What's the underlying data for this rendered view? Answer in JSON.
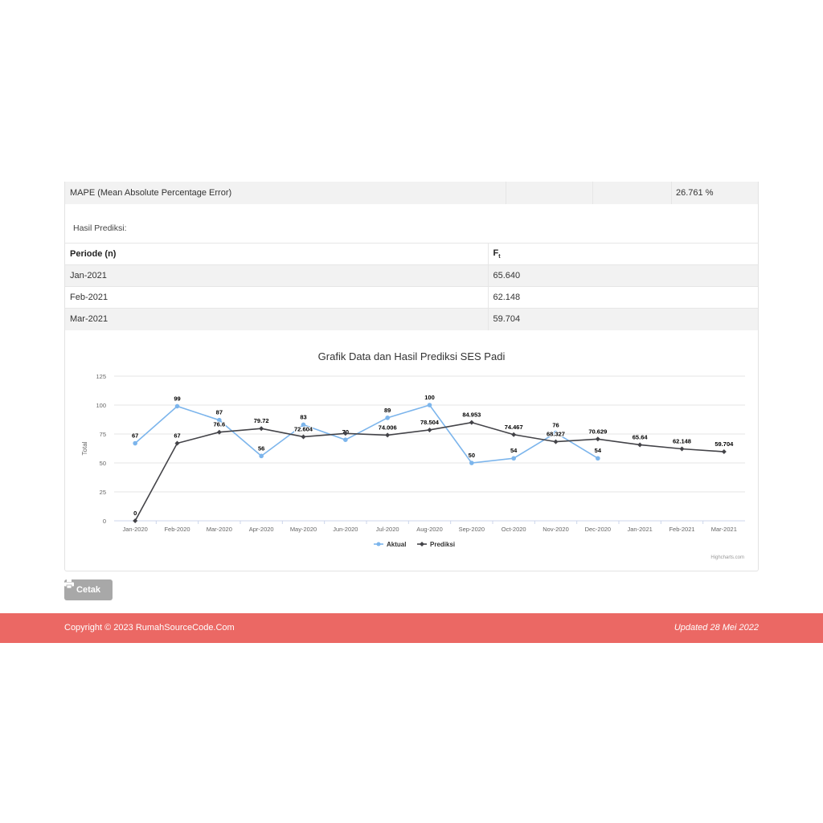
{
  "mape": {
    "label": "MAPE (Mean Absolute Percentage Error)",
    "value": "26.761 %"
  },
  "hasil_label": "Hasil Prediksi:",
  "table": {
    "headers": [
      "Periode (n)",
      "F",
      "t"
    ],
    "rows": [
      {
        "periode": "Jan-2021",
        "ft": "65.640"
      },
      {
        "periode": "Feb-2021",
        "ft": "62.148"
      },
      {
        "periode": "Mar-2021",
        "ft": "59.704"
      }
    ]
  },
  "chart_data": {
    "type": "line",
    "title": "Grafik Data dan Hasil Prediksi SES Padi",
    "ylabel": "Total",
    "xlabel": "",
    "ylim": [
      0,
      125
    ],
    "yticks": [
      0,
      25,
      50,
      75,
      100,
      125
    ],
    "categories": [
      "Jan-2020",
      "Feb-2020",
      "Mar-2020",
      "Apr-2020",
      "May-2020",
      "Jun-2020",
      "Jul-2020",
      "Aug-2020",
      "Sep-2020",
      "Oct-2020",
      "Nov-2020",
      "Dec-2020",
      "Jan-2021",
      "Feb-2021",
      "Mar-2021"
    ],
    "series": [
      {
        "name": "Aktual",
        "color": "#7cb5ec",
        "values": [
          67,
          99,
          87,
          56,
          83,
          70,
          89,
          100,
          50,
          54,
          76,
          54,
          null,
          null,
          null
        ],
        "labels": [
          "67",
          "99",
          "87",
          "56",
          "83",
          "70",
          "89",
          "100",
          "50",
          "54",
          "76",
          "54",
          null,
          null,
          null
        ]
      },
      {
        "name": "Prediksi",
        "color": "#434348",
        "values": [
          0,
          67,
          76.6,
          79.72,
          72.604,
          75.5,
          74.006,
          78.504,
          84.953,
          74.467,
          68.327,
          70.629,
          65.64,
          62.148,
          59.704
        ],
        "labels": [
          "0",
          "67",
          "76.6",
          "79.72",
          "72.604",
          null,
          "74.006",
          "78.504",
          "84.953",
          "74.467",
          "68.327",
          "70.629",
          "65.64",
          "62.148",
          "59.704"
        ]
      }
    ],
    "legend_position": "bottom-center",
    "grid": true,
    "credit": "Highcharts.com"
  },
  "button": {
    "label": "Cetak",
    "icon": "print-icon"
  },
  "footer": {
    "copyright": "Copyright © 2023 RumahSourceCode.Com",
    "updated": "Updated 28 Mei 2022"
  },
  "colors": {
    "footer_bg": "#eb6864",
    "button_bg": "#a8a8a8"
  }
}
